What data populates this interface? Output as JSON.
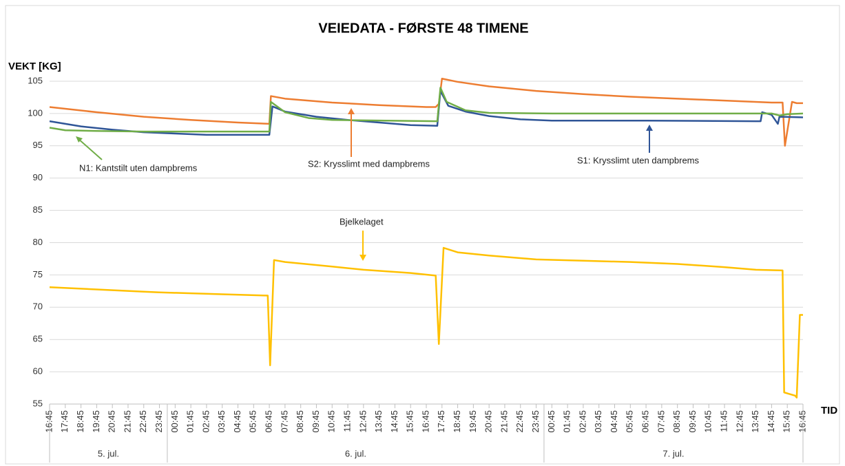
{
  "chart_data": {
    "type": "line",
    "title": "VEIEDATA - FØRSTE 48 TIMENE",
    "y_label": "VEKT [KG]",
    "x_label": "TID",
    "ylim": [
      55,
      105
    ],
    "yticks": [
      55,
      60,
      65,
      70,
      75,
      80,
      85,
      90,
      95,
      100,
      105
    ],
    "grid": true,
    "xlim": [
      0,
      48
    ],
    "xticks": [
      {
        "value": 0,
        "label": "16:45"
      },
      {
        "value": 1,
        "label": "17:45"
      },
      {
        "value": 2,
        "label": "18:45"
      },
      {
        "value": 3,
        "label": "19:45"
      },
      {
        "value": 4,
        "label": "20:45"
      },
      {
        "value": 5,
        "label": "21:45"
      },
      {
        "value": 6,
        "label": "22:45"
      },
      {
        "value": 7,
        "label": "23:45"
      },
      {
        "value": 8,
        "label": "00:45"
      },
      {
        "value": 9,
        "label": "01:45"
      },
      {
        "value": 10,
        "label": "02:45"
      },
      {
        "value": 11,
        "label": "03:45"
      },
      {
        "value": 12,
        "label": "04:45"
      },
      {
        "value": 13,
        "label": "05:45"
      },
      {
        "value": 14,
        "label": "06:45"
      },
      {
        "value": 15,
        "label": "07:45"
      },
      {
        "value": 16,
        "label": "08:45"
      },
      {
        "value": 17,
        "label": "09:45"
      },
      {
        "value": 18,
        "label": "10:45"
      },
      {
        "value": 19,
        "label": "11:45"
      },
      {
        "value": 20,
        "label": "12:45"
      },
      {
        "value": 21,
        "label": "13:45"
      },
      {
        "value": 22,
        "label": "14:45"
      },
      {
        "value": 23,
        "label": "15:45"
      },
      {
        "value": 24,
        "label": "16:45"
      },
      {
        "value": 25,
        "label": "17:45"
      },
      {
        "value": 26,
        "label": "18:45"
      },
      {
        "value": 27,
        "label": "19:45"
      },
      {
        "value": 28,
        "label": "20:45"
      },
      {
        "value": 29,
        "label": "21:45"
      },
      {
        "value": 30,
        "label": "22:45"
      },
      {
        "value": 31,
        "label": "23:45"
      },
      {
        "value": 32,
        "label": "00:45"
      },
      {
        "value": 33,
        "label": "01:45"
      },
      {
        "value": 34,
        "label": "02:45"
      },
      {
        "value": 35,
        "label": "03:45"
      },
      {
        "value": 36,
        "label": "04:45"
      },
      {
        "value": 37,
        "label": "05:45"
      },
      {
        "value": 38,
        "label": "06:45"
      },
      {
        "value": 39,
        "label": "07:45"
      },
      {
        "value": 40,
        "label": "08:45"
      },
      {
        "value": 41,
        "label": "09:45"
      },
      {
        "value": 42,
        "label": "10:45"
      },
      {
        "value": 43,
        "label": "11:45"
      },
      {
        "value": 44,
        "label": "12:45"
      },
      {
        "value": 45,
        "label": "13:45"
      },
      {
        "value": 46,
        "label": "14:45"
      },
      {
        "value": 47,
        "label": "15:45"
      },
      {
        "value": 48,
        "label": "16:45"
      }
    ],
    "x_groups": [
      {
        "label": "5. jul.",
        "xlim": [
          0,
          7
        ]
      },
      {
        "label": "6. jul.",
        "xlim": [
          8,
          31
        ]
      },
      {
        "label": "7. jul.",
        "xlim": [
          32,
          48
        ]
      }
    ],
    "series": [
      {
        "name": "S2: Krysslimt med dampbrems",
        "color": "#ed7d31",
        "x": [
          0,
          3,
          6,
          9,
          12,
          14,
          14.1,
          15,
          18,
          21,
          24,
          24.6,
          24.8,
          25,
          26,
          28,
          31,
          34,
          37,
          40,
          43,
          46,
          46.7,
          46.85,
          47.3,
          47.6,
          48
        ],
        "values": [
          101,
          100.2,
          99.5,
          99,
          98.6,
          98.4,
          102.7,
          102.3,
          101.7,
          101.3,
          101,
          101,
          101.5,
          105.4,
          104.9,
          104.2,
          103.5,
          103,
          102.6,
          102.3,
          102,
          101.7,
          101.7,
          95,
          101.8,
          101.6,
          101.6
        ]
      },
      {
        "name": "S1: Krysslimt uten dampbrems",
        "color": "#2f5597",
        "x": [
          0,
          2,
          4,
          6,
          8,
          10,
          13,
          14,
          14.2,
          15,
          17,
          19,
          21,
          23,
          24.7,
          24.9,
          25.4,
          26.5,
          28,
          30,
          32,
          38,
          45,
          45.3,
          45.4,
          46,
          46.4,
          46.5,
          48
        ],
        "values": [
          98.8,
          98,
          97.5,
          97.1,
          96.9,
          96.7,
          96.7,
          96.7,
          101.1,
          100.3,
          99.5,
          99,
          98.6,
          98.2,
          98.1,
          103.5,
          101.2,
          100.3,
          99.6,
          99.1,
          98.9,
          98.9,
          98.8,
          98.8,
          100.2,
          99.8,
          98.4,
          99.5,
          99.4
        ]
      },
      {
        "name": "N1: Kantstilt uten dampbrems",
        "color": "#70ad47",
        "x": [
          0,
          1,
          3,
          6,
          14,
          14.1,
          15,
          16.5,
          18,
          24.7,
          24.9,
          25.3,
          26.5,
          28,
          32,
          46,
          46.5,
          47,
          48
        ],
        "values": [
          97.8,
          97.4,
          97.3,
          97.2,
          97.2,
          101.8,
          100.2,
          99.3,
          99,
          98.8,
          104,
          101.8,
          100.5,
          100.1,
          100,
          100,
          99.7,
          99.9,
          100
        ]
      },
      {
        "name": "Bjelkelaget",
        "color": "#ffc000",
        "x": [
          0,
          6,
          7,
          11,
          13.9,
          14.05,
          14.3,
          15,
          18,
          20,
          23,
          24.6,
          24.8,
          25.1,
          26,
          28,
          31,
          34,
          37,
          40,
          43,
          45,
          46.7,
          46.8,
          47.5,
          47.6,
          47.8,
          48
        ],
        "values": [
          73.1,
          72.4,
          72.3,
          72,
          71.8,
          61,
          77.3,
          77,
          76.3,
          75.8,
          75.3,
          74.9,
          64.3,
          79.2,
          78.5,
          78,
          77.4,
          77.2,
          77,
          76.7,
          76.2,
          75.8,
          75.7,
          56.8,
          56.3,
          56,
          68.8,
          68.8
        ]
      }
    ]
  }
}
